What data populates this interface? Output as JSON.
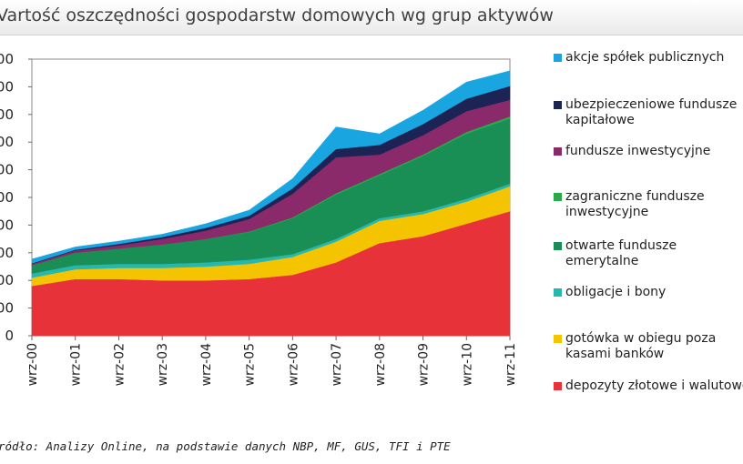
{
  "title": "Vartość oszczędności gospodarstw domowych wg grup aktywów",
  "source": "ródło: Analizy Online, na podstawie danych NBP, MF, GUS, TFI i PTE",
  "chart_data": {
    "type": "area",
    "stacked": true,
    "x_ticks": [
      "wrz-00",
      "wrz-01",
      "wrz-02",
      "wrz-03",
      "wrz-04",
      "wrz-05",
      "wrz-06",
      "wrz-07",
      "wrz-08",
      "wrz-09",
      "wrz-10",
      "wrz-11"
    ],
    "y_tick_labels": [
      "0",
      "00",
      "00",
      "00",
      "00",
      "00",
      "00",
      "00",
      "00",
      "00",
      "00"
    ],
    "ylim": [
      0,
      10
    ],
    "grid": false,
    "legend_position": "right",
    "series": [
      {
        "name": "depozyty złotowe i walutowe",
        "color": "#e8323a",
        "values": [
          1.8,
          2.05,
          2.05,
          2.0,
          2.0,
          2.05,
          2.2,
          2.65,
          3.35,
          3.6,
          4.05,
          4.5
        ]
      },
      {
        "name": "gotówka w obiegu poza kasami banków",
        "color": "#f5c400",
        "values": [
          0.3,
          0.35,
          0.4,
          0.45,
          0.5,
          0.55,
          0.65,
          0.75,
          0.8,
          0.8,
          0.8,
          0.9
        ]
      },
      {
        "name": "obligacje i bony",
        "color": "#26b8b0",
        "values": [
          0.15,
          0.15,
          0.15,
          0.15,
          0.15,
          0.15,
          0.1,
          0.1,
          0.1,
          0.1,
          0.1,
          0.1
        ]
      },
      {
        "name": "otwarte fundusze emerytalne",
        "color": "#1a8f55",
        "values": [
          0.3,
          0.45,
          0.55,
          0.7,
          0.85,
          1.0,
          1.3,
          1.6,
          1.55,
          2.0,
          2.35,
          2.35
        ]
      },
      {
        "name": "zagraniczne fundusze inwestycyjne",
        "color": "#2aa84a",
        "values": [
          0.0,
          0.0,
          0.0,
          0.0,
          0.0,
          0.02,
          0.03,
          0.05,
          0.05,
          0.05,
          0.07,
          0.08
        ]
      },
      {
        "name": "fundusze inwestycyjne",
        "color": "#8a2a6a",
        "values": [
          0.05,
          0.08,
          0.12,
          0.2,
          0.3,
          0.45,
          0.85,
          1.3,
          0.7,
          0.7,
          0.75,
          0.6
        ]
      },
      {
        "name": "ubezpieczeniowe fundusze kapitałowe",
        "color": "#1c2456",
        "values": [
          0.02,
          0.03,
          0.05,
          0.07,
          0.1,
          0.12,
          0.2,
          0.3,
          0.35,
          0.4,
          0.45,
          0.5
        ]
      },
      {
        "name": "akcje spółek publicznych",
        "color": "#19a6e0",
        "values": [
          0.15,
          0.1,
          0.1,
          0.1,
          0.15,
          0.2,
          0.35,
          0.8,
          0.4,
          0.5,
          0.6,
          0.55
        ]
      }
    ]
  },
  "legend": [
    {
      "label": "akcje spółek publicznych",
      "color": "#19a6e0"
    },
    {
      "label": "ubezpieczeniowe fundusze\nkapitałowe",
      "color": "#1c2456"
    },
    {
      "label": "fundusze inwestycyjne",
      "color": "#8a2a6a"
    },
    {
      "label": "zagraniczne fundusze\ninwestycyjne",
      "color": "#2aa84a"
    },
    {
      "label": "otwarte fundusze\nemerytalne",
      "color": "#1a8f55"
    },
    {
      "label": "obligacje i bony",
      "color": "#26b8b0"
    },
    {
      "label": "gotówka w obiegu poza\nkasami banków",
      "color": "#f5c400"
    },
    {
      "label": "depozyty złotowe i walutowe",
      "color": "#e8323a"
    }
  ]
}
